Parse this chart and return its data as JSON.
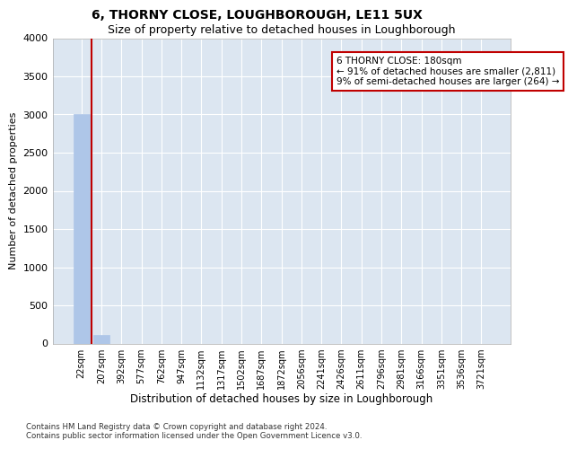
{
  "title": "6, THORNY CLOSE, LOUGHBOROUGH, LE11 5UX",
  "subtitle": "Size of property relative to detached houses in Loughborough",
  "xlabel": "Distribution of detached houses by size in Loughborough",
  "ylabel": "Number of detached properties",
  "categories": [
    "22sqm",
    "207sqm",
    "392sqm",
    "577sqm",
    "762sqm",
    "947sqm",
    "1132sqm",
    "1317sqm",
    "1502sqm",
    "1687sqm",
    "1872sqm",
    "2056sqm",
    "2241sqm",
    "2426sqm",
    "2611sqm",
    "2796sqm",
    "2981sqm",
    "3166sqm",
    "3351sqm",
    "3536sqm",
    "3721sqm"
  ],
  "values": [
    3000,
    115,
    0,
    0,
    0,
    0,
    0,
    0,
    0,
    0,
    0,
    0,
    0,
    0,
    0,
    0,
    0,
    0,
    0,
    0,
    0
  ],
  "bar_color": "#aec6e8",
  "bar_edge_color": "#aec6e8",
  "vline_x": 0.5,
  "vline_color": "#c00000",
  "annotation_text": "6 THORNY CLOSE: 180sqm\n← 91% of detached houses are smaller (2,811)\n9% of semi-detached houses are larger (264) →",
  "annotation_box_color": "#ffffff",
  "annotation_box_edge_color": "#c00000",
  "ylim": [
    0,
    4000
  ],
  "yticks": [
    0,
    500,
    1000,
    1500,
    2000,
    2500,
    3000,
    3500,
    4000
  ],
  "background_color": "#dce6f1",
  "plot_bg_color": "#dce6f1",
  "grid_color": "#ffffff",
  "footer_line1": "Contains HM Land Registry data © Crown copyright and database right 2024.",
  "footer_line2": "Contains public sector information licensed under the Open Government Licence v3.0.",
  "title_fontsize": 10,
  "subtitle_fontsize": 9,
  "tick_fontsize": 7,
  "ylabel_fontsize": 8,
  "xlabel_fontsize": 8.5,
  "annotation_fontsize": 7.5
}
